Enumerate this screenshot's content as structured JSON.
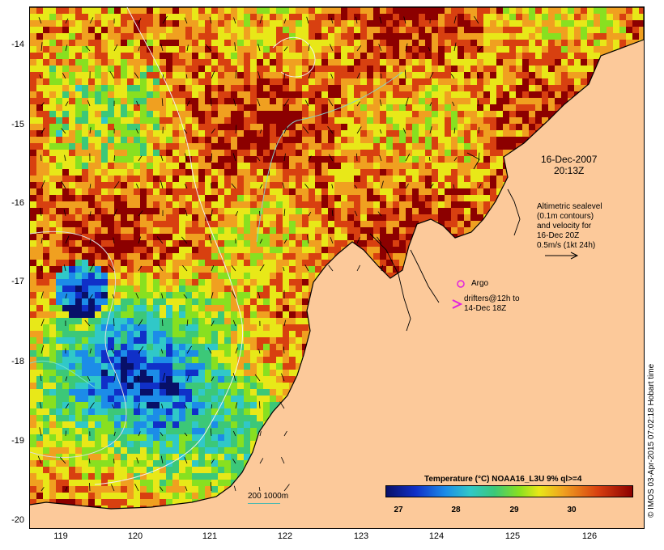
{
  "map": {
    "y_ticks": [
      "-14",
      "-15",
      "-16",
      "-17",
      "-18",
      "-19",
      "-20"
    ],
    "x_ticks": [
      "119",
      "120",
      "121",
      "122",
      "123",
      "124",
      "125",
      "126"
    ],
    "timestamp_line1": "16-Dec-2007",
    "timestamp_line2": "20:13Z",
    "altimetry_note": [
      "Altimetric sealevel",
      "(0.1m contours)",
      "and velocity for",
      "16-Dec 20Z",
      "0.5m/s (1kt 24h)"
    ],
    "argo_label": "Argo",
    "drifters_label_1": "drifters@12h to",
    "drifters_label_2": "14-Dec 18Z",
    "scale_label": "200  1000m",
    "credit": "© IMOS 03-Apr-2015 07:02:18 Hobart time",
    "colorbar": {
      "title": "Temperature (°C) NOAA16_L3U 9% ql>=4",
      "ticks": [
        "27",
        "28",
        "29",
        "30"
      ]
    },
    "colors": {
      "land": "#fcc99a",
      "scale_line": "#4fb8b0",
      "argo_marker": "#e020e0"
    }
  }
}
